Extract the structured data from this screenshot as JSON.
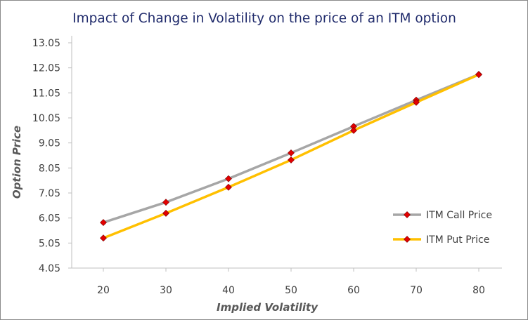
{
  "chart_data": {
    "type": "line",
    "title": "Impact of Change in Volatility on the price of an ITM option",
    "xlabel": "Implied Volatility",
    "ylabel": "Option Price",
    "x": [
      20,
      30,
      40,
      50,
      60,
      70,
      80
    ],
    "x_ticks": [
      "20",
      "30",
      "40",
      "50",
      "60",
      "70",
      "80"
    ],
    "ylim": [
      4.05,
      13.05
    ],
    "y_ticks": [
      "4.05",
      "5.05",
      "6.05",
      "7.05",
      "8.05",
      "9.05",
      "10.05",
      "11.05",
      "12.05",
      "13.05"
    ],
    "grid": false,
    "legend_position": "right",
    "series": [
      {
        "name": "ITM Call Price",
        "color": "#a6a6a6",
        "marker_color": "#e30000",
        "values": [
          5.87,
          6.68,
          7.62,
          8.65,
          9.71,
          10.76,
          11.79
        ]
      },
      {
        "name": "ITM Put Price",
        "color": "#ffc000",
        "marker_color": "#e30000",
        "values": [
          5.25,
          6.24,
          7.28,
          8.37,
          9.55,
          10.67,
          11.78
        ]
      }
    ]
  }
}
